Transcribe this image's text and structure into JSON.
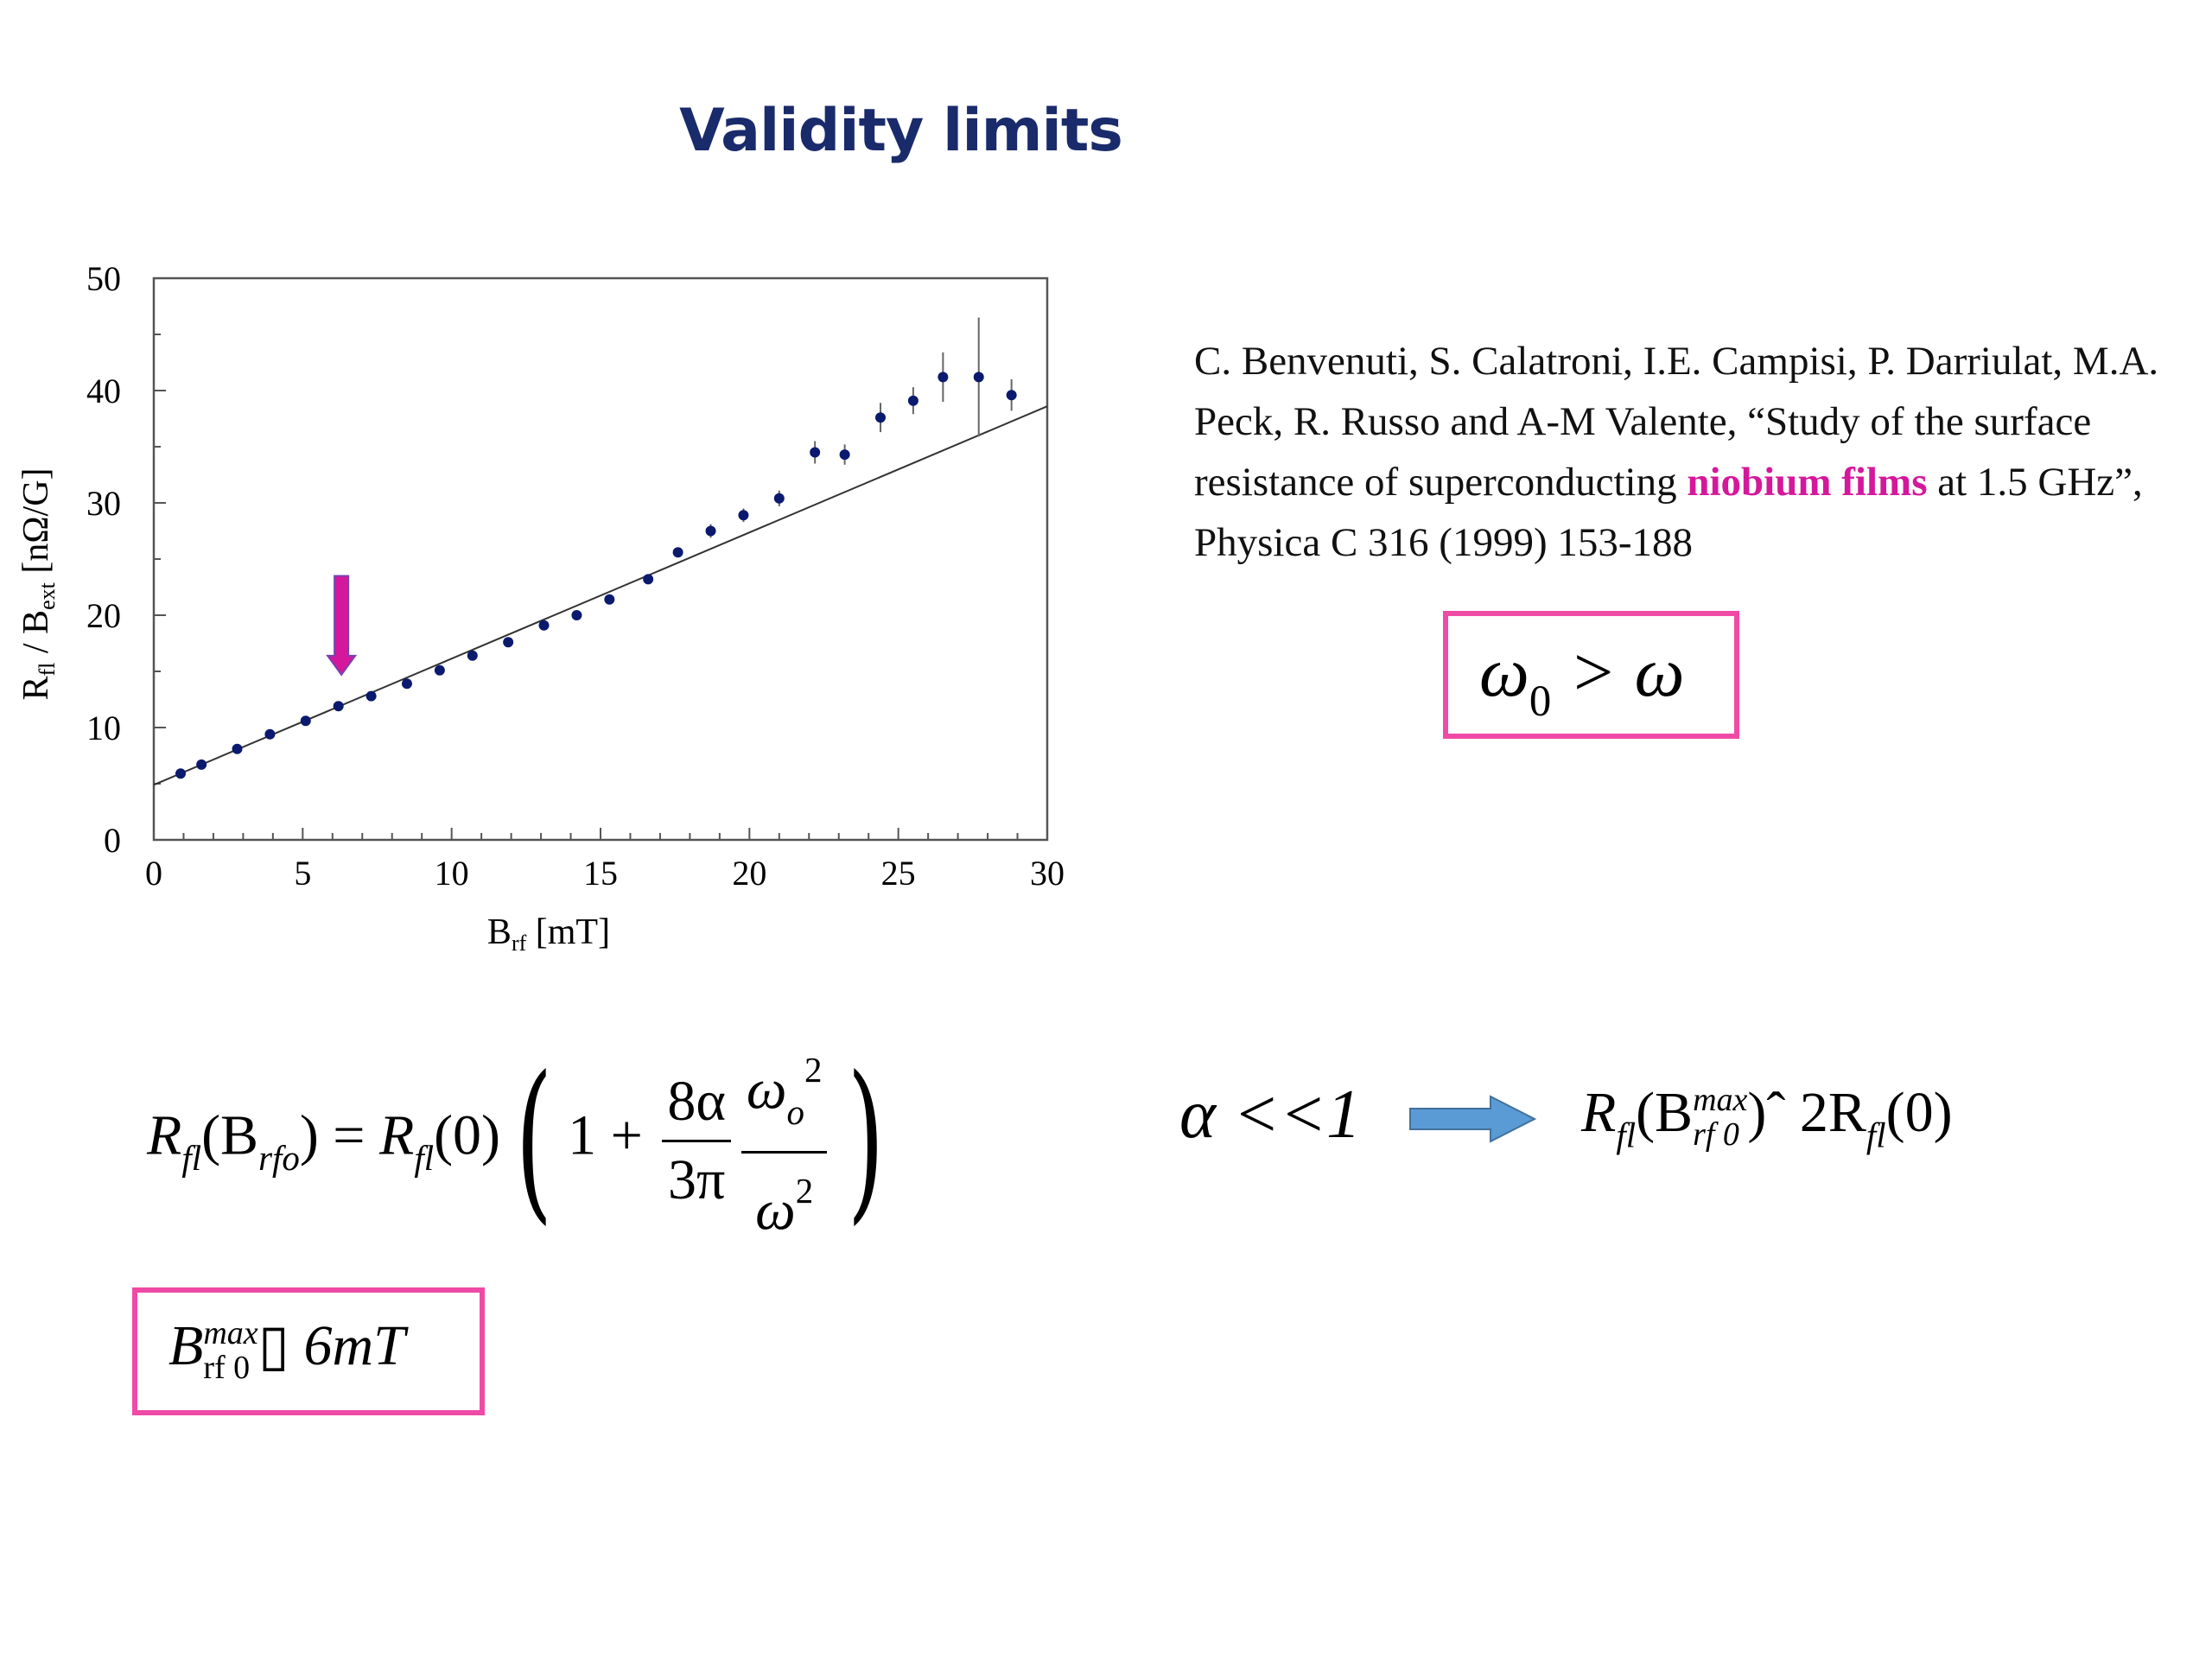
{
  "slide": {
    "title": "Validity limits"
  },
  "chart_data": {
    "type": "scatter",
    "xlabel": "B",
    "xlabel_sub": "rf",
    "xlabel_unit": " [mT]",
    "ylabel_main": "R",
    "ylabel_sub1": "fl",
    "ylabel_mid": " / B",
    "ylabel_sub2": "ext",
    "ylabel_unit": " [nΩ/G]",
    "xlim": [
      0,
      30
    ],
    "ylim": [
      0,
      50
    ],
    "x_ticks": [
      0,
      5,
      10,
      15,
      20,
      25,
      30
    ],
    "y_ticks": [
      0,
      10,
      20,
      30,
      40,
      50
    ],
    "grid": false,
    "series": [
      {
        "kind": "points",
        "x": [
          0.9,
          1.6,
          2.8,
          3.9,
          5.1,
          6.2,
          7.3,
          8.5,
          9.6,
          10.7,
          11.9,
          13.1,
          14.2,
          15.3,
          16.6,
          17.6,
          18.7,
          19.8,
          21.0,
          22.2,
          23.2,
          24.4,
          25.5,
          26.5,
          27.7,
          28.8
        ],
        "y": [
          5.9,
          6.7,
          8.1,
          9.4,
          10.6,
          11.9,
          12.8,
          13.9,
          15.1,
          16.4,
          17.6,
          19.1,
          20.0,
          21.4,
          23.2,
          25.6,
          27.5,
          28.9,
          30.4,
          34.5,
          34.3,
          37.6,
          39.1,
          41.2,
          41.2,
          39.6
        ],
        "err": [
          0.3,
          0.3,
          0.3,
          0.3,
          0.3,
          0.3,
          0.3,
          0.3,
          0.3,
          0.3,
          0.3,
          0.3,
          0.3,
          0.3,
          0.4,
          0.4,
          0.6,
          0.6,
          0.7,
          1.0,
          0.9,
          1.3,
          1.2,
          2.2,
          5.3,
          1.4
        ]
      },
      {
        "kind": "line",
        "x": [
          0,
          30
        ],
        "y": [
          4.9,
          38.6
        ]
      }
    ],
    "annotation": {
      "type": "arrow",
      "x": 6.3,
      "y_from": 23.5,
      "y_to": 14.7,
      "color": "#d5189b"
    },
    "colors": {
      "points": "#0b1a6e",
      "line": "#333333",
      "errorbar": "#666666",
      "axis": "#555555"
    }
  },
  "reference": {
    "before": "C. Benvenuti, S. Calatroni, I.E. Campisi, P. Darriulat, M.A. Peck, R. Russo and A-M Valente, “Study of the surface resistance of superconducting ",
    "highlight": "niobium films",
    "after": " at 1.5 GHz”, Physica C 316 (1999) 153-188"
  },
  "equations": {
    "omega_condition": {
      "w": "ω",
      "zero": "0",
      "rest": " > ω"
    },
    "bmax": {
      "B": "B",
      "sup": "max",
      "sub": "rf 0",
      "sym": "▯",
      "rest": " 6mT"
    },
    "main": {
      "lhs_R": "R",
      "lhs_sub": "fl",
      "lhs_arg_open": "(B",
      "lhs_arg_sub": "rfo",
      "lhs_arg_close": ") = ",
      "rhs_R": "R",
      "rhs_sub": "fl",
      "rhs_zero": "(0)",
      "one_plus": "1 + ",
      "frac1_num": "8α",
      "frac1_den": "3π",
      "frac2_num_w": "ω",
      "frac2_num_sub": "o",
      "frac2_num_sup": "2",
      "frac2_den_w": "ω",
      "frac2_den_sup": "2",
      "paren_open": "(",
      "paren_close": ")"
    },
    "alpha": "α <<1",
    "result": {
      "R": "R",
      "sub": "fl",
      "open": "(B",
      "sup": "max",
      "sub2": "rf 0",
      "close": ")ˆ  2R",
      "sub3": "fl",
      "end": "(0)"
    }
  },
  "colors": {
    "title": "#1a2b6b",
    "highlight": "#d5189b",
    "box_border": "#ef4aa6",
    "block_arrow": "#5b9bd5"
  }
}
